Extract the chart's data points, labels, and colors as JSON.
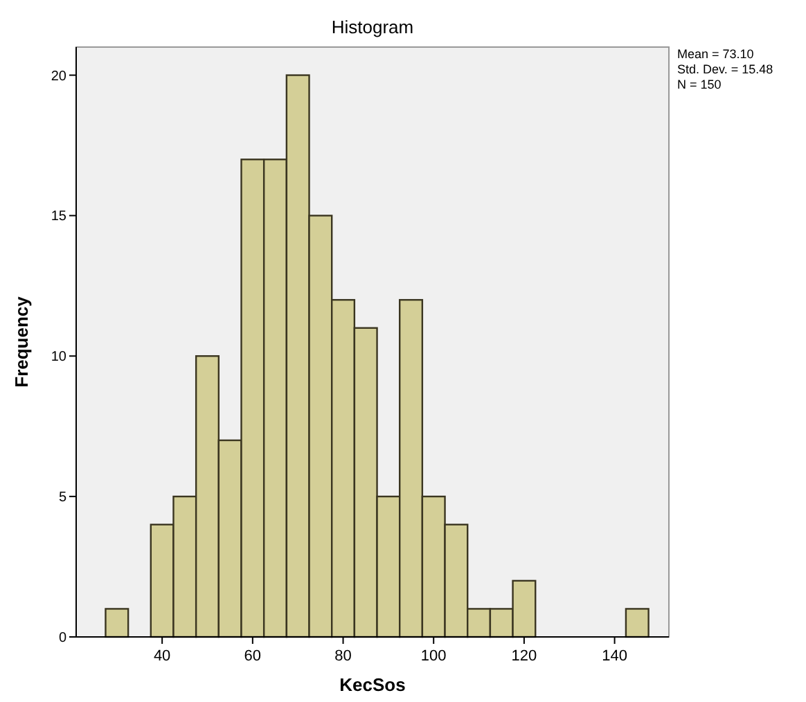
{
  "chart_data": {
    "type": "histogram",
    "title": "Histogram",
    "xlabel": "KecSos",
    "ylabel": "Frequency",
    "bins": [
      27.5,
      32.5,
      37.5,
      42.5,
      47.5,
      52.5,
      57.5,
      62.5,
      67.5,
      72.5,
      77.5,
      82.5,
      87.5,
      92.5,
      97.5,
      102.5,
      107.5,
      112.5,
      117.5,
      122.5,
      127.5,
      132.5,
      137.5,
      142.5,
      147.5
    ],
    "values": [
      1,
      0,
      4,
      5,
      10,
      7,
      17,
      17,
      20,
      15,
      12,
      11,
      5,
      12,
      5,
      4,
      1,
      1,
      2,
      0,
      0,
      0,
      0,
      1
    ],
    "color": "#d4cf97",
    "xlim": [
      21,
      152
    ],
    "xticks": [
      40,
      60,
      80,
      100,
      120,
      140
    ],
    "ylim": [
      0,
      21
    ],
    "yticks": [
      0,
      5,
      10,
      15,
      20
    ],
    "grid": false,
    "annotations": [
      "Mean = 73.10",
      "Std. Dev. = 15.48",
      "N = 150"
    ]
  }
}
